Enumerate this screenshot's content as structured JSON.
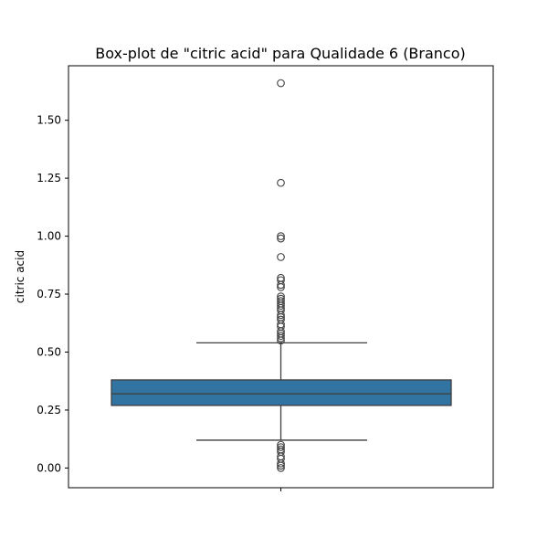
{
  "chart_data": {
    "type": "box",
    "title": "Box-plot de \"citric acid\" para Qualidade 6 (Branco)",
    "xlabel": "",
    "ylabel": "citric acid",
    "ylim": [
      -0.085,
      1.735
    ],
    "y_ticks": [
      "0.00",
      "0.25",
      "0.50",
      "0.75",
      "1.00",
      "1.25",
      "1.50"
    ],
    "grid": false,
    "box": {
      "q1": 0.27,
      "median": 0.32,
      "q3": 0.38,
      "whisker_low": 0.12,
      "whisker_high": 0.54
    },
    "outliers": [
      0.0,
      0.01,
      0.02,
      0.04,
      0.05,
      0.07,
      0.08,
      0.09,
      0.1,
      0.55,
      0.56,
      0.57,
      0.58,
      0.59,
      0.61,
      0.62,
      0.64,
      0.65,
      0.66,
      0.68,
      0.69,
      0.7,
      0.71,
      0.72,
      0.73,
      0.74,
      0.78,
      0.79,
      0.81,
      0.82,
      0.91,
      0.99,
      1.0,
      1.23,
      1.66
    ],
    "colors": {
      "box_fill": "#3274a1",
      "line": "#3f3f3f"
    }
  }
}
